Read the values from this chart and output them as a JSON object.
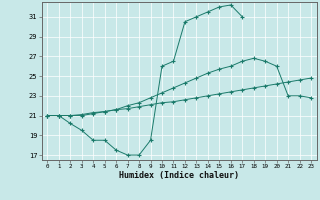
{
  "bg_color": "#c8e8e8",
  "line_color": "#1a7a6a",
  "xlabel": "Humidex (Indice chaleur)",
  "xlim": [
    -0.5,
    23.5
  ],
  "ylim": [
    16.5,
    32.5
  ],
  "xticks": [
    0,
    1,
    2,
    3,
    4,
    5,
    6,
    7,
    8,
    9,
    10,
    11,
    12,
    13,
    14,
    15,
    16,
    17,
    18,
    19,
    20,
    21,
    22,
    23
  ],
  "yticks": [
    17,
    19,
    21,
    23,
    25,
    27,
    29,
    31
  ],
  "line1_x": [
    0,
    1,
    2,
    3,
    4,
    5,
    6,
    7,
    8,
    9,
    10,
    11,
    12,
    13,
    14,
    15,
    16,
    17
  ],
  "line1_y": [
    21.0,
    21.0,
    20.2,
    19.5,
    18.5,
    18.5,
    17.5,
    17.0,
    17.0,
    18.5,
    26.0,
    26.5,
    30.5,
    31.0,
    31.5,
    32.0,
    32.2,
    31.0
  ],
  "line2_x": [
    0,
    1,
    2,
    3,
    4,
    5,
    6,
    7,
    8,
    9,
    10,
    11,
    12,
    13,
    14,
    15,
    16,
    17,
    18,
    19,
    20,
    21,
    22,
    23
  ],
  "line2_y": [
    21.0,
    21.0,
    21.0,
    21.0,
    21.2,
    21.4,
    21.6,
    22.0,
    22.3,
    22.8,
    23.3,
    23.8,
    24.3,
    24.8,
    25.3,
    25.7,
    26.0,
    26.5,
    26.8,
    26.5,
    26.0,
    23.0,
    23.0,
    22.8
  ],
  "line3_x": [
    0,
    1,
    2,
    3,
    4,
    5,
    6,
    7,
    8,
    9,
    10,
    11,
    12,
    13,
    14,
    15,
    16,
    17,
    18,
    19,
    20,
    21,
    22,
    23
  ],
  "line3_y": [
    21.0,
    21.0,
    21.0,
    21.1,
    21.3,
    21.4,
    21.6,
    21.7,
    21.9,
    22.1,
    22.3,
    22.4,
    22.6,
    22.8,
    23.0,
    23.2,
    23.4,
    23.6,
    23.8,
    24.0,
    24.2,
    24.4,
    24.6,
    24.8
  ]
}
